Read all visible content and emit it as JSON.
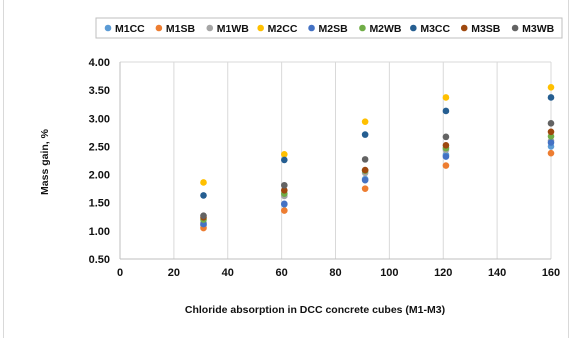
{
  "chart_data": {
    "type": "scatter",
    "title": "",
    "xlabel": "Chloride absorption in DCC concrete cubes (M1-M3)",
    "ylabel": "Mass gain, %",
    "xlim": [
      0,
      160
    ],
    "ylim": [
      0.5,
      4.0
    ],
    "x_ticks": [
      "0",
      "20",
      "40",
      "60",
      "80",
      "100",
      "120",
      "140",
      "160"
    ],
    "y_ticks": [
      "0.50",
      "1.00",
      "1.50",
      "2.00",
      "2.50",
      "3.00",
      "3.50",
      "4.00"
    ],
    "grid": "vertical",
    "legend_position": "top",
    "x": [
      31,
      61,
      91,
      121,
      160
    ],
    "series": [
      {
        "name": "M1CC",
        "color": "#5b9bd5",
        "values": [
          1.1,
          1.47,
          1.92,
          2.35,
          2.5
        ]
      },
      {
        "name": "M1SB",
        "color": "#ed7d31",
        "values": [
          1.05,
          1.36,
          1.75,
          2.16,
          2.38
        ]
      },
      {
        "name": "M1WB",
        "color": "#a5a5a5",
        "values": [
          1.15,
          1.62,
          2.03,
          2.44,
          2.6
        ]
      },
      {
        "name": "M2CC",
        "color": "#ffc000",
        "values": [
          1.86,
          2.36,
          2.94,
          3.37,
          3.55
        ]
      },
      {
        "name": "M2SB",
        "color": "#4472c4",
        "values": [
          1.12,
          1.48,
          1.9,
          2.32,
          2.57
        ]
      },
      {
        "name": "M2WB",
        "color": "#70ad47",
        "values": [
          1.2,
          1.66,
          2.07,
          2.47,
          2.68
        ]
      },
      {
        "name": "M3CC",
        "color": "#255e91",
        "values": [
          1.63,
          2.26,
          2.71,
          3.13,
          3.37
        ]
      },
      {
        "name": "M3SB",
        "color": "#9e480e",
        "values": [
          1.24,
          1.72,
          2.08,
          2.52,
          2.76
        ]
      },
      {
        "name": "M3WB",
        "color": "#636363",
        "values": [
          1.27,
          1.81,
          2.27,
          2.67,
          2.91
        ]
      }
    ]
  }
}
